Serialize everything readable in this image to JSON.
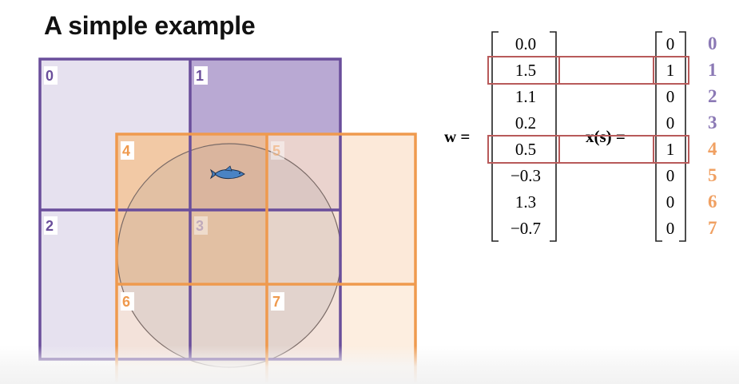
{
  "title": "A simple example",
  "colors": {
    "purple": "#6a4e9b",
    "purple_fill_light": "#e6e1ef",
    "purple_fill_dark": "#b9a9d3",
    "orange": "#ef9a4e",
    "orange_fill": "#f5c8a0",
    "orange_fill_light": "#fbe3cf",
    "highlight_red": "#b85a5a",
    "circle_stroke": "#7a6a66",
    "fish": "#4a83c4"
  },
  "tiles": {
    "purple_tiling": [
      "0",
      "1",
      "2",
      "3"
    ],
    "orange_tiling": [
      "4",
      "5",
      "6",
      "7"
    ]
  },
  "equation": {
    "w_label": "w =",
    "x_label": "x(s) =",
    "w_values": [
      "0.0",
      "1.5",
      "1.1",
      "0.2",
      "0.5",
      "−0.3",
      "1.3",
      "−0.7"
    ],
    "x_values": [
      "0",
      "1",
      "0",
      "0",
      "1",
      "0",
      "0",
      "0"
    ],
    "indices": [
      "0",
      "1",
      "2",
      "3",
      "4",
      "5",
      "6",
      "7"
    ],
    "highlighted_rows": [
      1,
      4
    ]
  }
}
